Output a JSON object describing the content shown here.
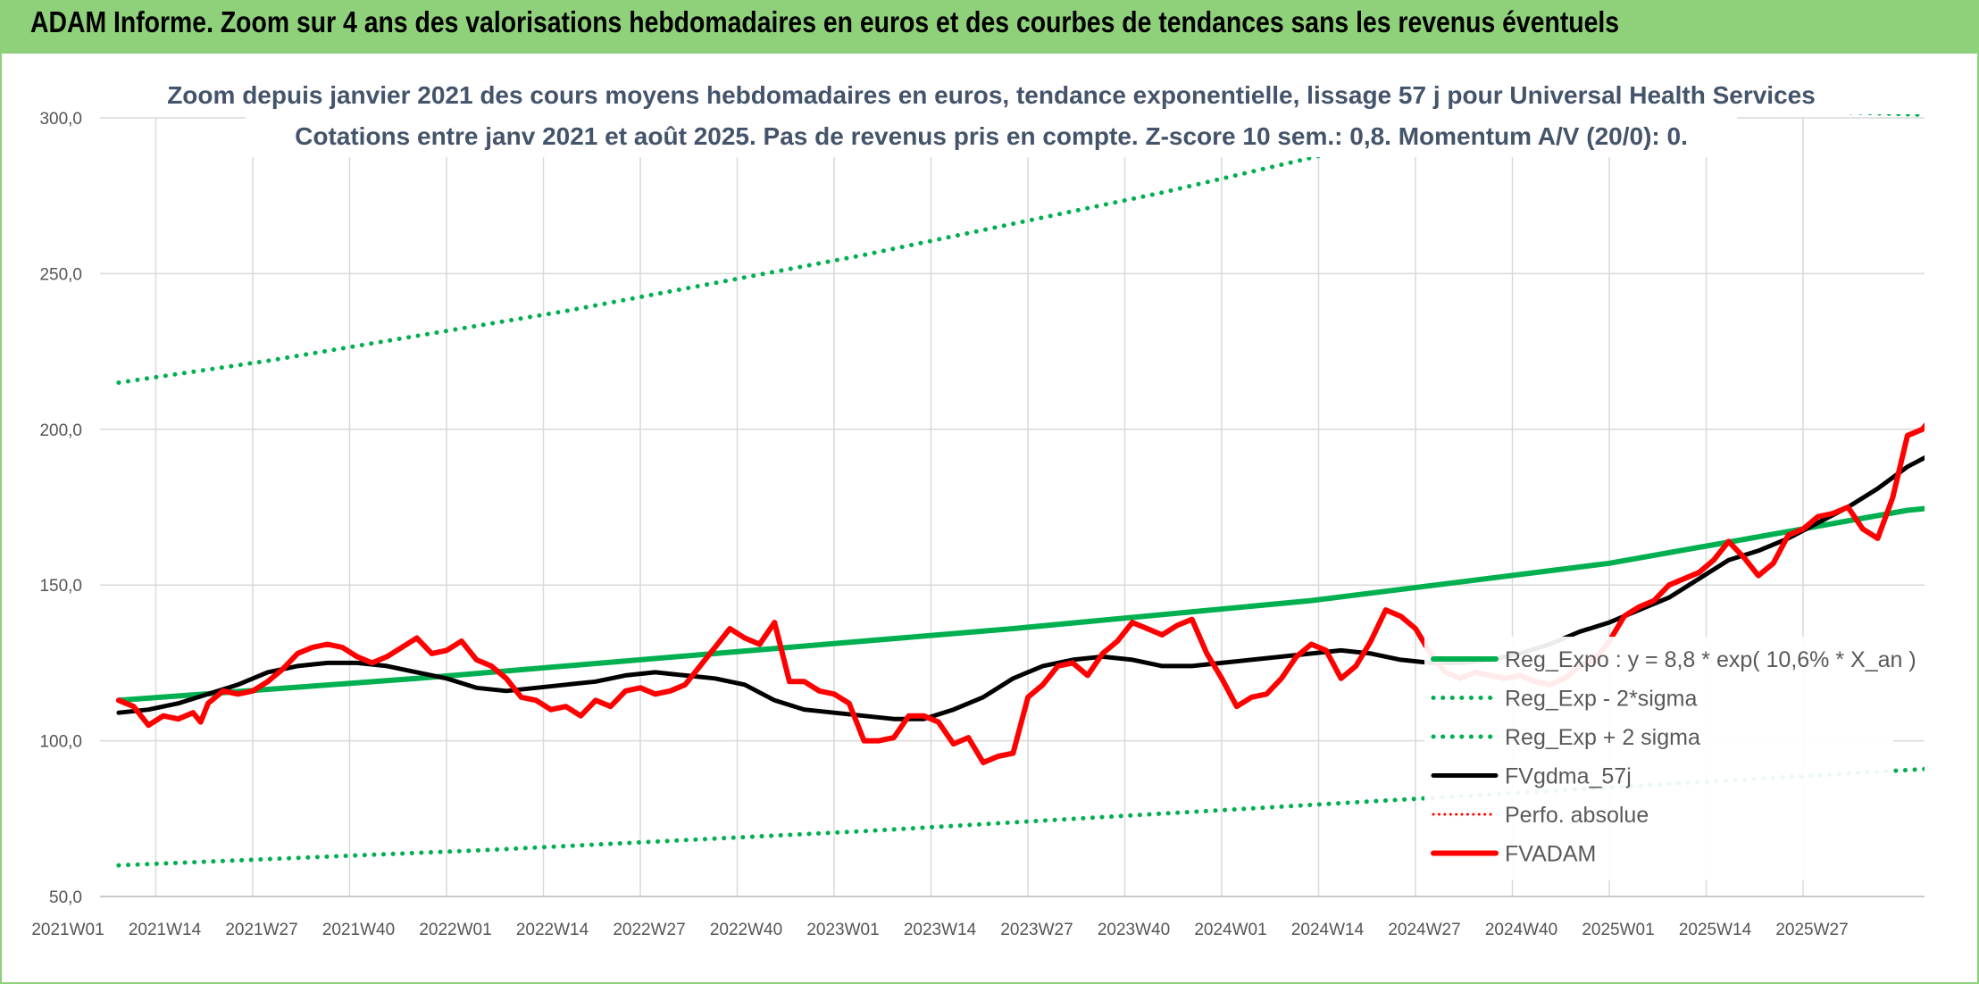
{
  "banner": {
    "title": "ADAM Informe. Zoom sur 4 ans des valorisations hebdomadaires en euros et des courbes de tendances sans les revenus éventuels"
  },
  "colors": {
    "banner_bg": "#8fd07a",
    "trend_green": "#00b050",
    "price_red": "#ff0000",
    "smooth_black": "#000000",
    "title_text": "#44546a",
    "grid": "#d9d9d9"
  },
  "chart_data": {
    "type": "line",
    "title_lines": [
      "Zoom depuis janvier 2021 des cours moyens hebdomadaires en euros, tendance exponentielle, lissage 57 j pour Universal Health Services",
      "Cotations entre janv 2021 et août 2025. Pas de revenus pris en compte. Z-score 10 sem.: 0,8. Momentum A/V (20/0): 0."
    ],
    "ylim": [
      50,
      300
    ],
    "y_ticks": [
      "50,0",
      "100,0",
      "150,0",
      "200,0",
      "250,0",
      "300,0"
    ],
    "y_tick_values": [
      50,
      100,
      150,
      200,
      250,
      300
    ],
    "x_tick_labels": [
      "2021W01",
      "2021W14",
      "2021W27",
      "2021W40",
      "2022W01",
      "2022W14",
      "2022W27",
      "2022W40",
      "2023W01",
      "2023W14",
      "2023W27",
      "2023W40",
      "2024W01",
      "2024W14",
      "2024W27",
      "2024W40",
      "2025W01",
      "2025W14",
      "2025W27"
    ],
    "week_range": [
      0,
      243
    ],
    "grid": true,
    "legend_position": "bottom-right",
    "series": [
      {
        "name": "Reg_Expo : y = 8,8 * exp( 10,6% *  X_an )",
        "style": "solid",
        "color": "#00b050",
        "width": 6,
        "points": [
          [
            0,
            113
          ],
          [
            40,
            120
          ],
          [
            80,
            128
          ],
          [
            120,
            136
          ],
          [
            160,
            145
          ],
          [
            200,
            157
          ],
          [
            240,
            174
          ],
          [
            290,
            186
          ]
        ]
      },
      {
        "name": "Reg_Exp - 2*sigma",
        "style": "dotted",
        "color": "#00b050",
        "width": 5,
        "points": [
          [
            0,
            60
          ],
          [
            50,
            65
          ],
          [
            100,
            71
          ],
          [
            150,
            78
          ],
          [
            200,
            85
          ],
          [
            250,
            92
          ],
          [
            290,
            98
          ]
        ]
      },
      {
        "name": "Reg_Exp + 2 sigma",
        "style": "dotted",
        "color": "#00b050",
        "width": 5,
        "points": [
          [
            0,
            215
          ],
          [
            20,
            222
          ],
          [
            40,
            230
          ],
          [
            60,
            238
          ],
          [
            80,
            247
          ],
          [
            100,
            256
          ],
          [
            120,
            266
          ],
          [
            140,
            276
          ],
          [
            165,
            290
          ],
          [
            175,
            296
          ],
          [
            190,
            305
          ],
          [
            255,
            300
          ],
          [
            290,
            300
          ]
        ]
      },
      {
        "name": "FVgdma_57j",
        "style": "solid",
        "color": "#000000",
        "width": 5,
        "points": [
          [
            0,
            109
          ],
          [
            4,
            110
          ],
          [
            8,
            112
          ],
          [
            12,
            115
          ],
          [
            16,
            118
          ],
          [
            20,
            122
          ],
          [
            24,
            124
          ],
          [
            28,
            125
          ],
          [
            32,
            125
          ],
          [
            36,
            124
          ],
          [
            40,
            122
          ],
          [
            44,
            120
          ],
          [
            48,
            117
          ],
          [
            52,
            116
          ],
          [
            56,
            117
          ],
          [
            60,
            118
          ],
          [
            64,
            119
          ],
          [
            68,
            121
          ],
          [
            72,
            122
          ],
          [
            76,
            121
          ],
          [
            80,
            120
          ],
          [
            84,
            118
          ],
          [
            88,
            113
          ],
          [
            92,
            110
          ],
          [
            96,
            109
          ],
          [
            100,
            108
          ],
          [
            104,
            107
          ],
          [
            108,
            107
          ],
          [
            112,
            110
          ],
          [
            116,
            114
          ],
          [
            120,
            120
          ],
          [
            124,
            124
          ],
          [
            128,
            126
          ],
          [
            132,
            127
          ],
          [
            136,
            126
          ],
          [
            140,
            124
          ],
          [
            144,
            124
          ],
          [
            148,
            125
          ],
          [
            152,
            126
          ],
          [
            156,
            127
          ],
          [
            160,
            128
          ],
          [
            164,
            129
          ],
          [
            168,
            128
          ],
          [
            172,
            126
          ],
          [
            176,
            125
          ],
          [
            180,
            125
          ],
          [
            184,
            126
          ],
          [
            188,
            128
          ],
          [
            192,
            131
          ],
          [
            196,
            135
          ],
          [
            200,
            138
          ],
          [
            204,
            142
          ],
          [
            208,
            146
          ],
          [
            212,
            152
          ],
          [
            216,
            158
          ],
          [
            220,
            161
          ],
          [
            224,
            165
          ],
          [
            228,
            170
          ],
          [
            232,
            175
          ],
          [
            236,
            181
          ],
          [
            240,
            188
          ],
          [
            244,
            193
          ],
          [
            248,
            194
          ],
          [
            252,
            191
          ],
          [
            256,
            188
          ],
          [
            260,
            185
          ],
          [
            264,
            181
          ],
          [
            268,
            176
          ],
          [
            272,
            174
          ],
          [
            276,
            170
          ],
          [
            280,
            166
          ],
          [
            284,
            163
          ],
          [
            288,
            161
          ],
          [
            292,
            157
          ],
          [
            296,
            156
          ],
          [
            298,
            154
          ],
          [
            300,
            155
          ]
        ]
      },
      {
        "name": "Perfo. absolue",
        "style": "dotted",
        "color": "#ff0000",
        "width": 3,
        "points": []
      },
      {
        "name": "FVADAM",
        "style": "solid",
        "color": "#ff0000",
        "width": 6,
        "points": [
          [
            0,
            113
          ],
          [
            2,
            111
          ],
          [
            4,
            105
          ],
          [
            6,
            108
          ],
          [
            8,
            107
          ],
          [
            10,
            109
          ],
          [
            11,
            106
          ],
          [
            12,
            112
          ],
          [
            14,
            116
          ],
          [
            16,
            115
          ],
          [
            18,
            116
          ],
          [
            20,
            119
          ],
          [
            22,
            123
          ],
          [
            24,
            128
          ],
          [
            26,
            130
          ],
          [
            28,
            131
          ],
          [
            30,
            130
          ],
          [
            32,
            127
          ],
          [
            34,
            125
          ],
          [
            36,
            127
          ],
          [
            38,
            130
          ],
          [
            40,
            133
          ],
          [
            42,
            128
          ],
          [
            44,
            129
          ],
          [
            46,
            132
          ],
          [
            48,
            126
          ],
          [
            50,
            124
          ],
          [
            52,
            120
          ],
          [
            54,
            114
          ],
          [
            56,
            113
          ],
          [
            58,
            110
          ],
          [
            60,
            111
          ],
          [
            62,
            108
          ],
          [
            64,
            113
          ],
          [
            66,
            111
          ],
          [
            68,
            116
          ],
          [
            70,
            117
          ],
          [
            72,
            115
          ],
          [
            74,
            116
          ],
          [
            76,
            118
          ],
          [
            78,
            124
          ],
          [
            80,
            130
          ],
          [
            82,
            136
          ],
          [
            84,
            133
          ],
          [
            86,
            131
          ],
          [
            88,
            138
          ],
          [
            90,
            119
          ],
          [
            92,
            119
          ],
          [
            94,
            116
          ],
          [
            96,
            115
          ],
          [
            98,
            112
          ],
          [
            100,
            100
          ],
          [
            102,
            100
          ],
          [
            104,
            101
          ],
          [
            106,
            108
          ],
          [
            108,
            108
          ],
          [
            110,
            106
          ],
          [
            112,
            99
          ],
          [
            114,
            101
          ],
          [
            116,
            93
          ],
          [
            118,
            95
          ],
          [
            120,
            96
          ],
          [
            122,
            114
          ],
          [
            124,
            118
          ],
          [
            126,
            124
          ],
          [
            128,
            125
          ],
          [
            130,
            121
          ],
          [
            132,
            128
          ],
          [
            134,
            132
          ],
          [
            136,
            138
          ],
          [
            138,
            136
          ],
          [
            140,
            134
          ],
          [
            142,
            137
          ],
          [
            144,
            139
          ],
          [
            146,
            128
          ],
          [
            148,
            120
          ],
          [
            150,
            111
          ],
          [
            152,
            114
          ],
          [
            154,
            115
          ],
          [
            156,
            120
          ],
          [
            158,
            127
          ],
          [
            160,
            131
          ],
          [
            162,
            129
          ],
          [
            164,
            120
          ],
          [
            166,
            124
          ],
          [
            168,
            132
          ],
          [
            170,
            142
          ],
          [
            172,
            140
          ],
          [
            174,
            136
          ],
          [
            176,
            128
          ],
          [
            178,
            122
          ],
          [
            180,
            120
          ],
          [
            182,
            122
          ],
          [
            184,
            121
          ],
          [
            186,
            120
          ],
          [
            188,
            121
          ],
          [
            190,
            119
          ],
          [
            192,
            118
          ],
          [
            194,
            120
          ],
          [
            196,
            124
          ],
          [
            198,
            126
          ],
          [
            200,
            132
          ],
          [
            202,
            140
          ],
          [
            204,
            143
          ],
          [
            206,
            145
          ],
          [
            208,
            150
          ],
          [
            210,
            152
          ],
          [
            212,
            154
          ],
          [
            214,
            158
          ],
          [
            216,
            164
          ],
          [
            218,
            159
          ],
          [
            220,
            153
          ],
          [
            222,
            157
          ],
          [
            224,
            166
          ],
          [
            226,
            168
          ],
          [
            228,
            172
          ],
          [
            230,
            173
          ],
          [
            232,
            175
          ],
          [
            234,
            168
          ],
          [
            236,
            165
          ],
          [
            238,
            178
          ],
          [
            240,
            198
          ],
          [
            242,
            200
          ],
          [
            244,
            206
          ],
          [
            246,
            212
          ],
          [
            248,
            207
          ],
          [
            250,
            210
          ],
          [
            252,
            200
          ],
          [
            254,
            213
          ],
          [
            256,
            196
          ],
          [
            258,
            208
          ],
          [
            260,
            192
          ],
          [
            262,
            188
          ],
          [
            264,
            191
          ],
          [
            266,
            188
          ],
          [
            268,
            184
          ],
          [
            270,
            178
          ],
          [
            272,
            174
          ],
          [
            274,
            176
          ],
          [
            276,
            181
          ],
          [
            278,
            182
          ],
          [
            280,
            169
          ],
          [
            282,
            160
          ],
          [
            284,
            168
          ],
          [
            286,
            168
          ],
          [
            288,
            152
          ],
          [
            290,
            147
          ],
          [
            292,
            164
          ],
          [
            294,
            172
          ],
          [
            296,
            168
          ],
          [
            298,
            164
          ],
          [
            300,
            155
          ],
          [
            302,
            148
          ],
          [
            304,
            150
          ],
          [
            306,
            157
          ],
          [
            308,
            149
          ],
          [
            310,
            143
          ],
          [
            312,
            145
          ],
          [
            314,
            151
          ],
          [
            316,
            157
          ],
          [
            318,
            156
          ]
        ]
      }
    ]
  }
}
